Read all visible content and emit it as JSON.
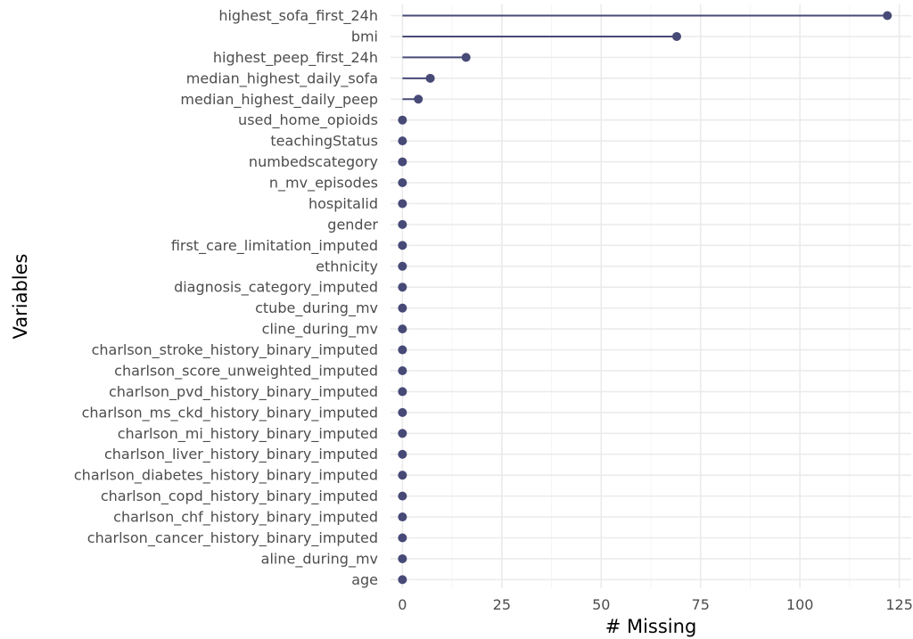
{
  "chart_data": {
    "type": "lollipop",
    "orientation": "horizontal",
    "xlabel": "# Missing",
    "ylabel": "Variables",
    "xlim": [
      -3,
      128
    ],
    "xticks": [
      0,
      25,
      50,
      75,
      100,
      125
    ],
    "grid": true,
    "legend": "none",
    "colors": {
      "series": "#474a77",
      "grid_major": "#ebebeb",
      "grid_minor": "#f3f3f3"
    },
    "categories": [
      "highest_sofa_first_24h",
      "bmi",
      "highest_peep_first_24h",
      "median_highest_daily_sofa",
      "median_highest_daily_peep",
      "used_home_opioids",
      "teachingStatus",
      "numbedscategory",
      "n_mv_episodes",
      "hospitalid",
      "gender",
      "first_care_limitation_imputed",
      "ethnicity",
      "diagnosis_category_imputed",
      "ctube_during_mv",
      "cline_during_mv",
      "charlson_stroke_history_binary_imputed",
      "charlson_score_unweighted_imputed",
      "charlson_pvd_history_binary_imputed",
      "charlson_ms_ckd_history_binary_imputed",
      "charlson_mi_history_binary_imputed",
      "charlson_liver_history_binary_imputed",
      "charlson_diabetes_history_binary_imputed",
      "charlson_copd_history_binary_imputed",
      "charlson_chf_history_binary_imputed",
      "charlson_cancer_history_binary_imputed",
      "aline_during_mv",
      "age"
    ],
    "values": [
      122,
      69,
      16,
      7,
      4,
      0,
      0,
      0,
      0,
      0,
      0,
      0,
      0,
      0,
      0,
      0,
      0,
      0,
      0,
      0,
      0,
      0,
      0,
      0,
      0,
      0,
      0,
      0
    ]
  }
}
